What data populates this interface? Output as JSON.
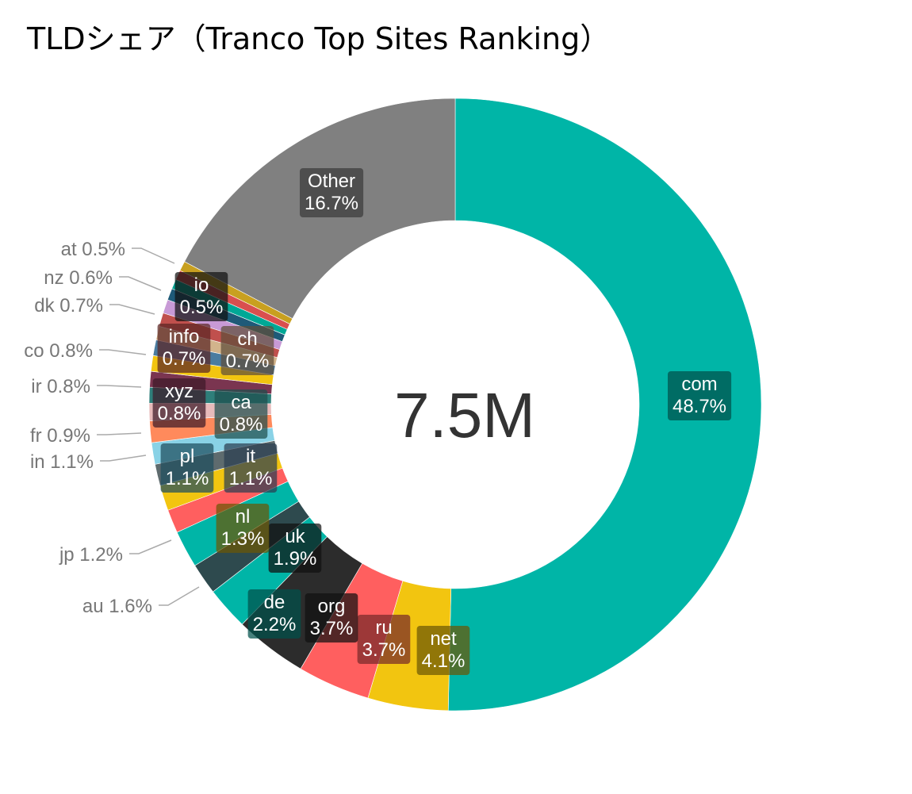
{
  "chart_data": {
    "type": "pie",
    "variant": "donut",
    "title": "TLDシェア（Tranco Top Sites Ranking）",
    "center_label": "7.5M",
    "direction": "clockwise",
    "start_angle_deg": 0,
    "label_box_opacity": 0.72,
    "slices": [
      {
        "label": "com",
        "value": 48.7,
        "text": "48.7%",
        "color": "#00B5A7",
        "box": "#00514B",
        "label_mode": "inside"
      },
      {
        "label": "net",
        "value": 4.1,
        "text": "4.1%",
        "color": "#F2C510",
        "box": "#6B5806",
        "label_mode": "inside"
      },
      {
        "label": "ru",
        "value": 3.7,
        "text": "3.7%",
        "color": "#FF5F5F",
        "box": "#772A2A",
        "label_mode": "inside"
      },
      {
        "label": "org",
        "value": 3.7,
        "text": "3.7%",
        "color": "#2C2C2C",
        "box": "#111111",
        "label_mode": "inside"
      },
      {
        "label": "de",
        "value": 2.2,
        "text": "2.2%",
        "color": "#00B5A7",
        "box": "#00514B",
        "label_mode": "inside"
      },
      {
        "label": "au",
        "value": 1.6,
        "text": "1.6%",
        "color": "#2E4A4E",
        "box": "#2E4A4E",
        "label_mode": "outside"
      },
      {
        "label": "uk",
        "value": 1.9,
        "text": "1.9%",
        "color": "#00B5A7",
        "box": "#111111",
        "label_mode": "inside"
      },
      {
        "label": "jp",
        "value": 1.2,
        "text": "1.2%",
        "color": "#FF5F5F",
        "box": "#772A2A",
        "label_mode": "outside"
      },
      {
        "label": "nl",
        "value": 1.3,
        "text": "1.3%",
        "color": "#F2C510",
        "box": "#6B5806",
        "label_mode": "inside"
      },
      {
        "label": "it",
        "value": 1.1,
        "text": "1.1%",
        "color": "#5E6B6E",
        "box": "#2B3E52",
        "label_mode": "inside"
      },
      {
        "label": "pl",
        "value": 1.1,
        "text": "1.1%",
        "color": "#89D2E6",
        "box": "#1E4E5E",
        "label_mode": "inside"
      },
      {
        "label": "in",
        "value": 1.1,
        "text": "1.1%",
        "color": "#FF8A5C",
        "box": "#6E3A26",
        "label_mode": "outside"
      },
      {
        "label": "fr",
        "value": 0.9,
        "text": "0.9%",
        "color": "#E8BBBB",
        "box": "#5E4444",
        "label_mode": "outside"
      },
      {
        "label": "ca",
        "value": 0.8,
        "text": "0.8%",
        "color": "#2E7F7A",
        "box": "#1F4F4D",
        "label_mode": "inside"
      },
      {
        "label": "xyz",
        "value": 0.8,
        "text": "0.8%",
        "color": "#7A3550",
        "box": "#3D1A28",
        "label_mode": "inside"
      },
      {
        "label": "ir",
        "value": 0.8,
        "text": "0.8%",
        "color": "#F2C510",
        "box": "#6B5806",
        "label_mode": "outside"
      },
      {
        "label": "co",
        "value": 0.8,
        "text": "0.8%",
        "color": "#4A7CA0",
        "box": "#2B4A60",
        "label_mode": "outside"
      },
      {
        "label": "ch",
        "value": 0.7,
        "text": "0.7%",
        "color": "#D2B48C",
        "box": "#5E4E3A",
        "label_mode": "inside"
      },
      {
        "label": "info",
        "value": 0.7,
        "text": "0.7%",
        "color": "#C0504D",
        "box": "#5A2524",
        "label_mode": "inside"
      },
      {
        "label": "dk",
        "value": 0.7,
        "text": "0.7%",
        "color": "#C89AD6",
        "box": "#5A4462",
        "label_mode": "outside"
      },
      {
        "label": "nz",
        "value": 0.6,
        "text": "0.6%",
        "color": "#1E5A78",
        "box": "#14384A",
        "label_mode": "outside"
      },
      {
        "label": "io",
        "value": 0.5,
        "text": "0.5%",
        "color": "#00A896",
        "box": "#111111",
        "label_mode": "inside"
      },
      {
        "label": "at",
        "value": 0.5,
        "text": "0.5%",
        "color": "#D94F4F",
        "box": "#5E2424",
        "label_mode": "outside"
      },
      {
        "label": "",
        "value": 0.5,
        "text": "",
        "color": "#C8A020",
        "box": "#5E4A0E",
        "label_mode": "none"
      },
      {
        "label": "Other",
        "value": 16.7,
        "text": "16.7%",
        "color": "#808080",
        "box": "#3A3A3A",
        "label_mode": "inside"
      }
    ]
  }
}
